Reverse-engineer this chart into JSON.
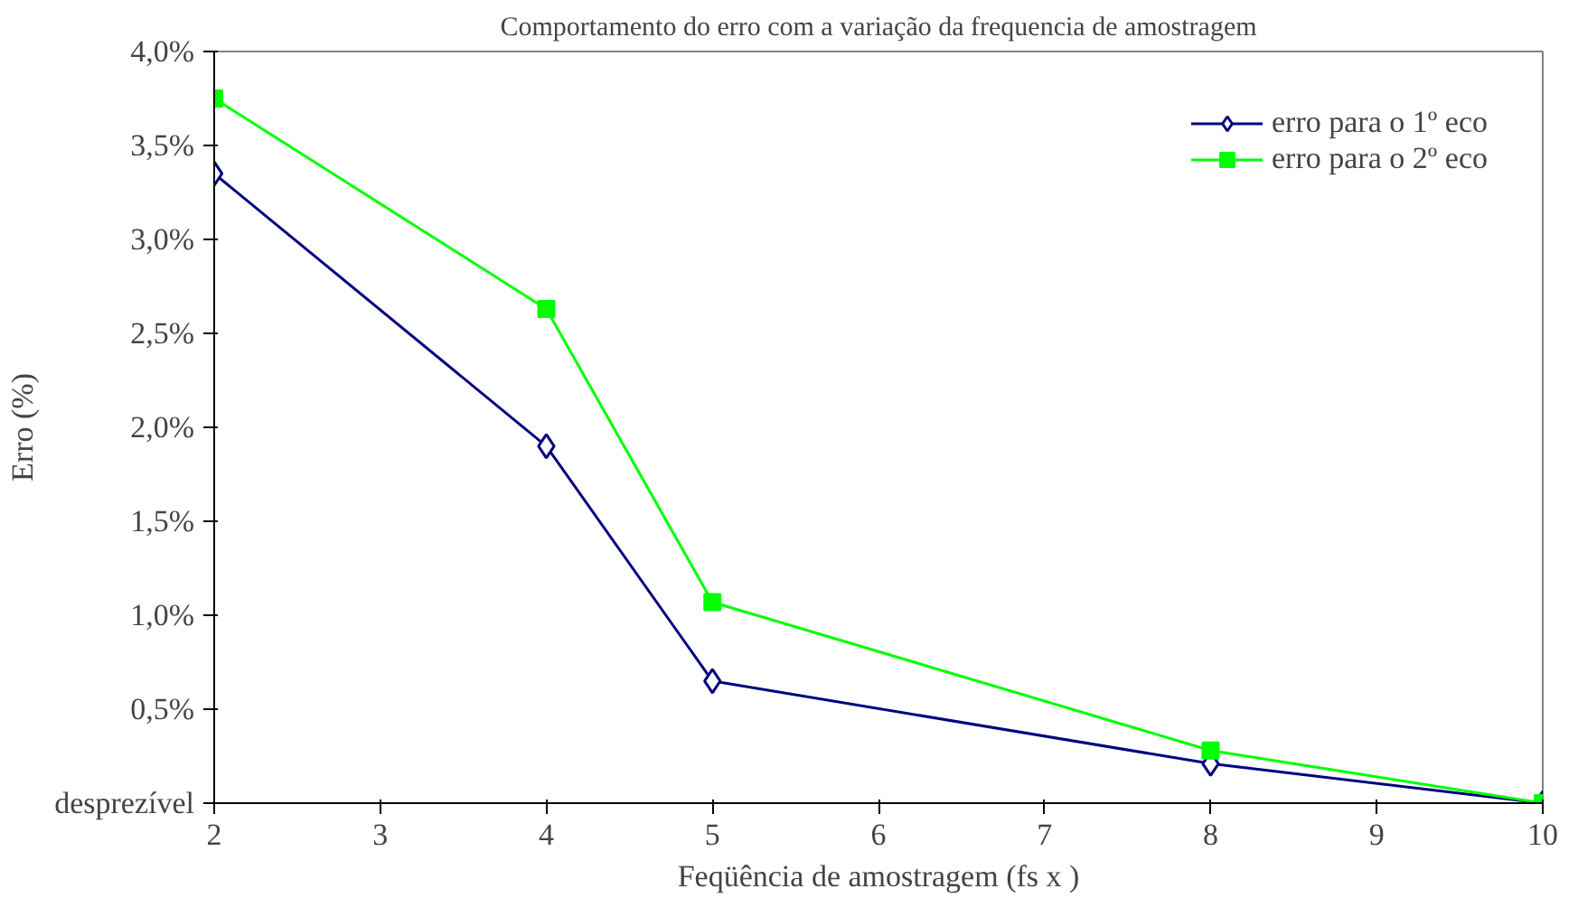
{
  "chart_data": {
    "type": "line",
    "title": "Comportamento do erro com a variação da frequencia de amostragem",
    "xlabel": "Feqüência de amostragem (fs x )",
    "ylabel": "Erro (%)",
    "x": [
      2,
      4,
      5,
      8,
      10
    ],
    "series": [
      {
        "name": "erro para o 1º eco",
        "color": "#000080",
        "marker": "diamond",
        "values": [
          3.35,
          1.9,
          0.65,
          0.21,
          0
        ]
      },
      {
        "name": "erro para o 2º eco",
        "color": "#00ff00",
        "marker": "square",
        "values": [
          3.75,
          2.63,
          1.07,
          0.28,
          0
        ]
      }
    ],
    "xlim": [
      2,
      10
    ],
    "xticks": [
      2,
      3,
      4,
      5,
      6,
      7,
      8,
      9,
      10
    ],
    "ylim": [
      0,
      4
    ],
    "yticks": [
      {
        "value": 0,
        "label": "desprezível"
      },
      {
        "value": 0.5,
        "label": "0,5%"
      },
      {
        "value": 1,
        "label": "1,0%"
      },
      {
        "value": 1.5,
        "label": "1,5%"
      },
      {
        "value": 2,
        "label": "2,0%"
      },
      {
        "value": 2.5,
        "label": "2,5%"
      },
      {
        "value": 3,
        "label": "3,0%"
      },
      {
        "value": 3.5,
        "label": "3,5%"
      },
      {
        "value": 4,
        "label": "4,0%"
      }
    ],
    "grid": false,
    "legend": "top right",
    "line_style": "solid"
  }
}
